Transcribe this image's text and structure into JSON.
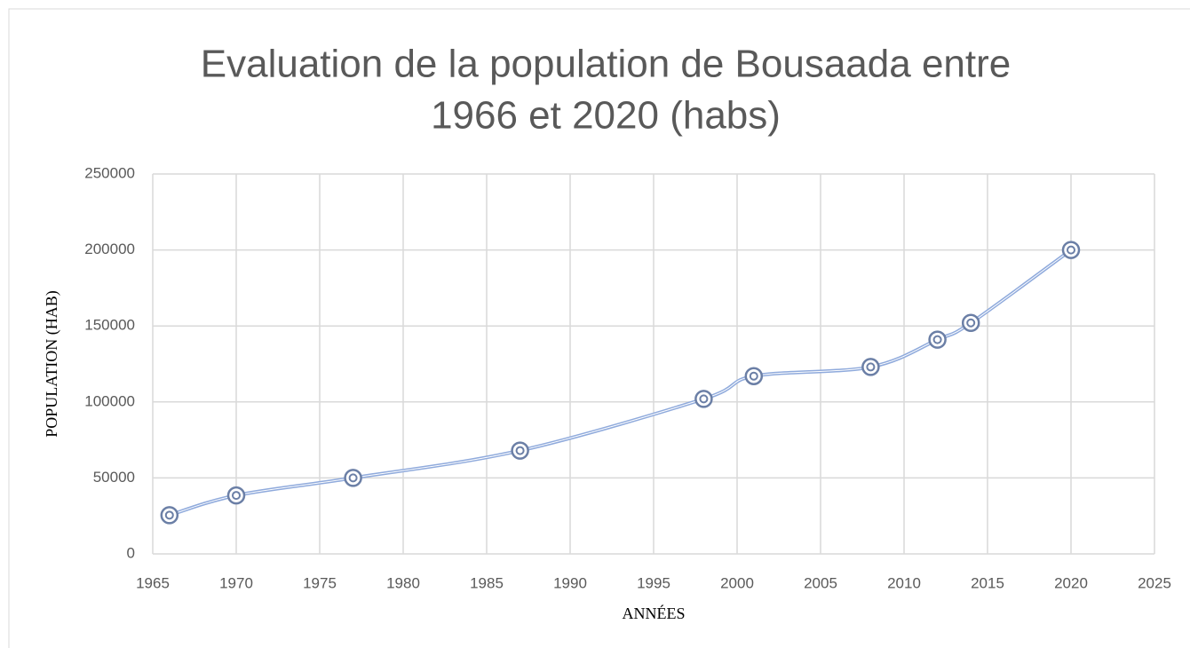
{
  "chart_data": {
    "type": "scatter",
    "title": [
      "Evaluation de la population de Bousaada entre",
      "1966 et 2020 (habs)"
    ],
    "x_label": "ANNÉES",
    "y_label": "POPULATION (HAB)",
    "x": [
      1966,
      1970,
      1977,
      1987,
      1998,
      2001,
      2008,
      2012,
      2014,
      2020
    ],
    "values": [
      25500,
      38500,
      50000,
      68000,
      102000,
      117000,
      123000,
      141000,
      152000,
      200000
    ],
    "color": "#8faadc",
    "marker_color": "#6b7fa6",
    "smooth": true,
    "xlim": [
      1965,
      2025
    ],
    "xticks": [
      1965,
      1970,
      1975,
      1980,
      1985,
      1990,
      1995,
      2000,
      2005,
      2010,
      2015,
      2020,
      2025
    ],
    "ylim": [
      0,
      250000
    ],
    "yticks": [
      0,
      50000,
      100000,
      150000,
      200000,
      250000
    ],
    "grid": true
  }
}
